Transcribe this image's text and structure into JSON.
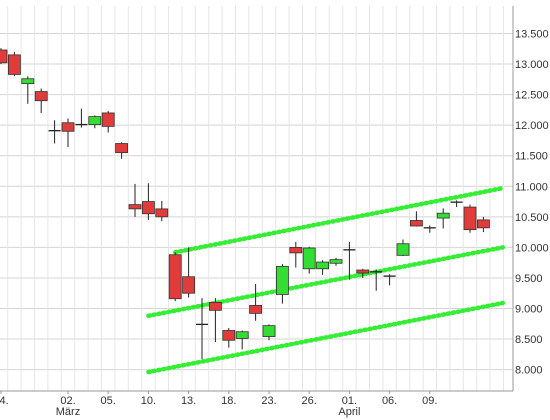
{
  "chart_data": {
    "type": "candlestick",
    "title": "",
    "xlabel": "",
    "ylabel": "",
    "ylim": [
      7650,
      13950
    ],
    "grid": true,
    "y_axis_position": "right",
    "y_ticks": [
      {
        "value": 13500,
        "label": "13.500"
      },
      {
        "value": 13000,
        "label": "13.000"
      },
      {
        "value": 12500,
        "label": "12.500"
      },
      {
        "value": 12000,
        "label": "12.000"
      },
      {
        "value": 11500,
        "label": "11.500"
      },
      {
        "value": 11000,
        "label": "11.000"
      },
      {
        "value": 10500,
        "label": "10.500"
      },
      {
        "value": 10000,
        "label": "10.000"
      },
      {
        "value": 9500,
        "label": "9.500"
      },
      {
        "value": 9000,
        "label": "9.000"
      },
      {
        "value": 8500,
        "label": "8.500"
      },
      {
        "value": 8000,
        "label": "8.000"
      }
    ],
    "x_ticks": [
      {
        "index": 0,
        "label": "24."
      },
      {
        "index": 5,
        "label": "02."
      },
      {
        "index": 8,
        "label": "05."
      },
      {
        "index": 11,
        "label": "10."
      },
      {
        "index": 14,
        "label": "13."
      },
      {
        "index": 17,
        "label": "18."
      },
      {
        "index": 20,
        "label": "23."
      },
      {
        "index": 23,
        "label": "26."
      },
      {
        "index": 26,
        "label": "01."
      },
      {
        "index": 29,
        "label": "06."
      },
      {
        "index": 32,
        "label": "09."
      }
    ],
    "month_labels": [
      {
        "index": 5,
        "label": "März"
      },
      {
        "index": 26,
        "label": "April"
      }
    ],
    "colors": {
      "up": "#33dd33",
      "down": "#e03c3c",
      "doji": "#222222",
      "channel": "#33ee33"
    },
    "candles": [
      {
        "index": 0,
        "open": 13230,
        "high": 13260,
        "low": 13000,
        "close": 13020
      },
      {
        "index": 1,
        "open": 13150,
        "high": 13200,
        "low": 12800,
        "close": 12830
      },
      {
        "index": 2,
        "open": 12680,
        "high": 12800,
        "low": 12350,
        "close": 12760
      },
      {
        "index": 3,
        "open": 12550,
        "high": 12600,
        "low": 12200,
        "close": 12400
      },
      {
        "index": 4,
        "open": 11910,
        "high": 12080,
        "low": 11700,
        "close": 11900
      },
      {
        "index": 5,
        "open": 12040,
        "high": 12110,
        "low": 11640,
        "close": 11900
      },
      {
        "index": 6,
        "open": 12000,
        "high": 12270,
        "low": 11960,
        "close": 12010
      },
      {
        "index": 7,
        "open": 12010,
        "high": 12160,
        "low": 11950,
        "close": 12140
      },
      {
        "index": 8,
        "open": 12200,
        "high": 12230,
        "low": 11880,
        "close": 11980
      },
      {
        "index": 9,
        "open": 11700,
        "high": 11720,
        "low": 11450,
        "close": 11550
      },
      {
        "index": 10,
        "open": 10700,
        "high": 11040,
        "low": 10500,
        "close": 10630
      },
      {
        "index": 11,
        "open": 10750,
        "high": 11050,
        "low": 10450,
        "close": 10550
      },
      {
        "index": 12,
        "open": 10630,
        "high": 10760,
        "low": 10430,
        "close": 10500
      },
      {
        "index": 13,
        "open": 9880,
        "high": 9920,
        "low": 9120,
        "close": 9160
      },
      {
        "index": 14,
        "open": 9520,
        "high": 10000,
        "low": 9180,
        "close": 9250
      },
      {
        "index": 15,
        "open": 8740,
        "high": 9170,
        "low": 8170,
        "close": 8740
      },
      {
        "index": 16,
        "open": 9100,
        "high": 9170,
        "low": 8450,
        "close": 8970
      },
      {
        "index": 17,
        "open": 8640,
        "high": 8680,
        "low": 8360,
        "close": 8480
      },
      {
        "index": 18,
        "open": 8510,
        "high": 8640,
        "low": 8330,
        "close": 8620
      },
      {
        "index": 19,
        "open": 9050,
        "high": 9400,
        "low": 8800,
        "close": 8920
      },
      {
        "index": 20,
        "open": 8540,
        "high": 8740,
        "low": 8480,
        "close": 8720
      },
      {
        "index": 21,
        "open": 9230,
        "high": 9730,
        "low": 9080,
        "close": 9690
      },
      {
        "index": 22,
        "open": 10000,
        "high": 10090,
        "low": 9670,
        "close": 9910
      },
      {
        "index": 23,
        "open": 9650,
        "high": 10010,
        "low": 9570,
        "close": 9990
      },
      {
        "index": 24,
        "open": 9650,
        "high": 9790,
        "low": 9550,
        "close": 9760
      },
      {
        "index": 25,
        "open": 9740,
        "high": 9830,
        "low": 9700,
        "close": 9800
      },
      {
        "index": 26,
        "open": 9960,
        "high": 10090,
        "low": 9470,
        "close": 9940
      },
      {
        "index": 27,
        "open": 9630,
        "high": 9650,
        "low": 9500,
        "close": 9580
      },
      {
        "index": 28,
        "open": 9600,
        "high": 9640,
        "low": 9290,
        "close": 9560
      },
      {
        "index": 29,
        "open": 9530,
        "high": 9560,
        "low": 9380,
        "close": 9520
      },
      {
        "index": 30,
        "open": 9870,
        "high": 10130,
        "low": 9860,
        "close": 10060
      },
      {
        "index": 31,
        "open": 10440,
        "high": 10590,
        "low": 10340,
        "close": 10350
      },
      {
        "index": 32,
        "open": 10280,
        "high": 10360,
        "low": 10240,
        "close": 10320
      },
      {
        "index": 33,
        "open": 10480,
        "high": 10640,
        "low": 10310,
        "close": 10560
      },
      {
        "index": 34,
        "open": 10740,
        "high": 10770,
        "low": 10660,
        "close": 10710
      },
      {
        "index": 35,
        "open": 10660,
        "high": 10700,
        "low": 10240,
        "close": 10290
      },
      {
        "index": 36,
        "open": 10450,
        "high": 10500,
        "low": 10250,
        "close": 10320
      }
    ],
    "channel_lines": [
      {
        "x1": 13,
        "y1": 9920,
        "x2": 37,
        "y2": 10970
      },
      {
        "x1": 11,
        "y1": 8880,
        "x2": 37,
        "y2": 10000
      },
      {
        "x1": 11,
        "y1": 7960,
        "x2": 37,
        "y2": 9090
      }
    ]
  }
}
